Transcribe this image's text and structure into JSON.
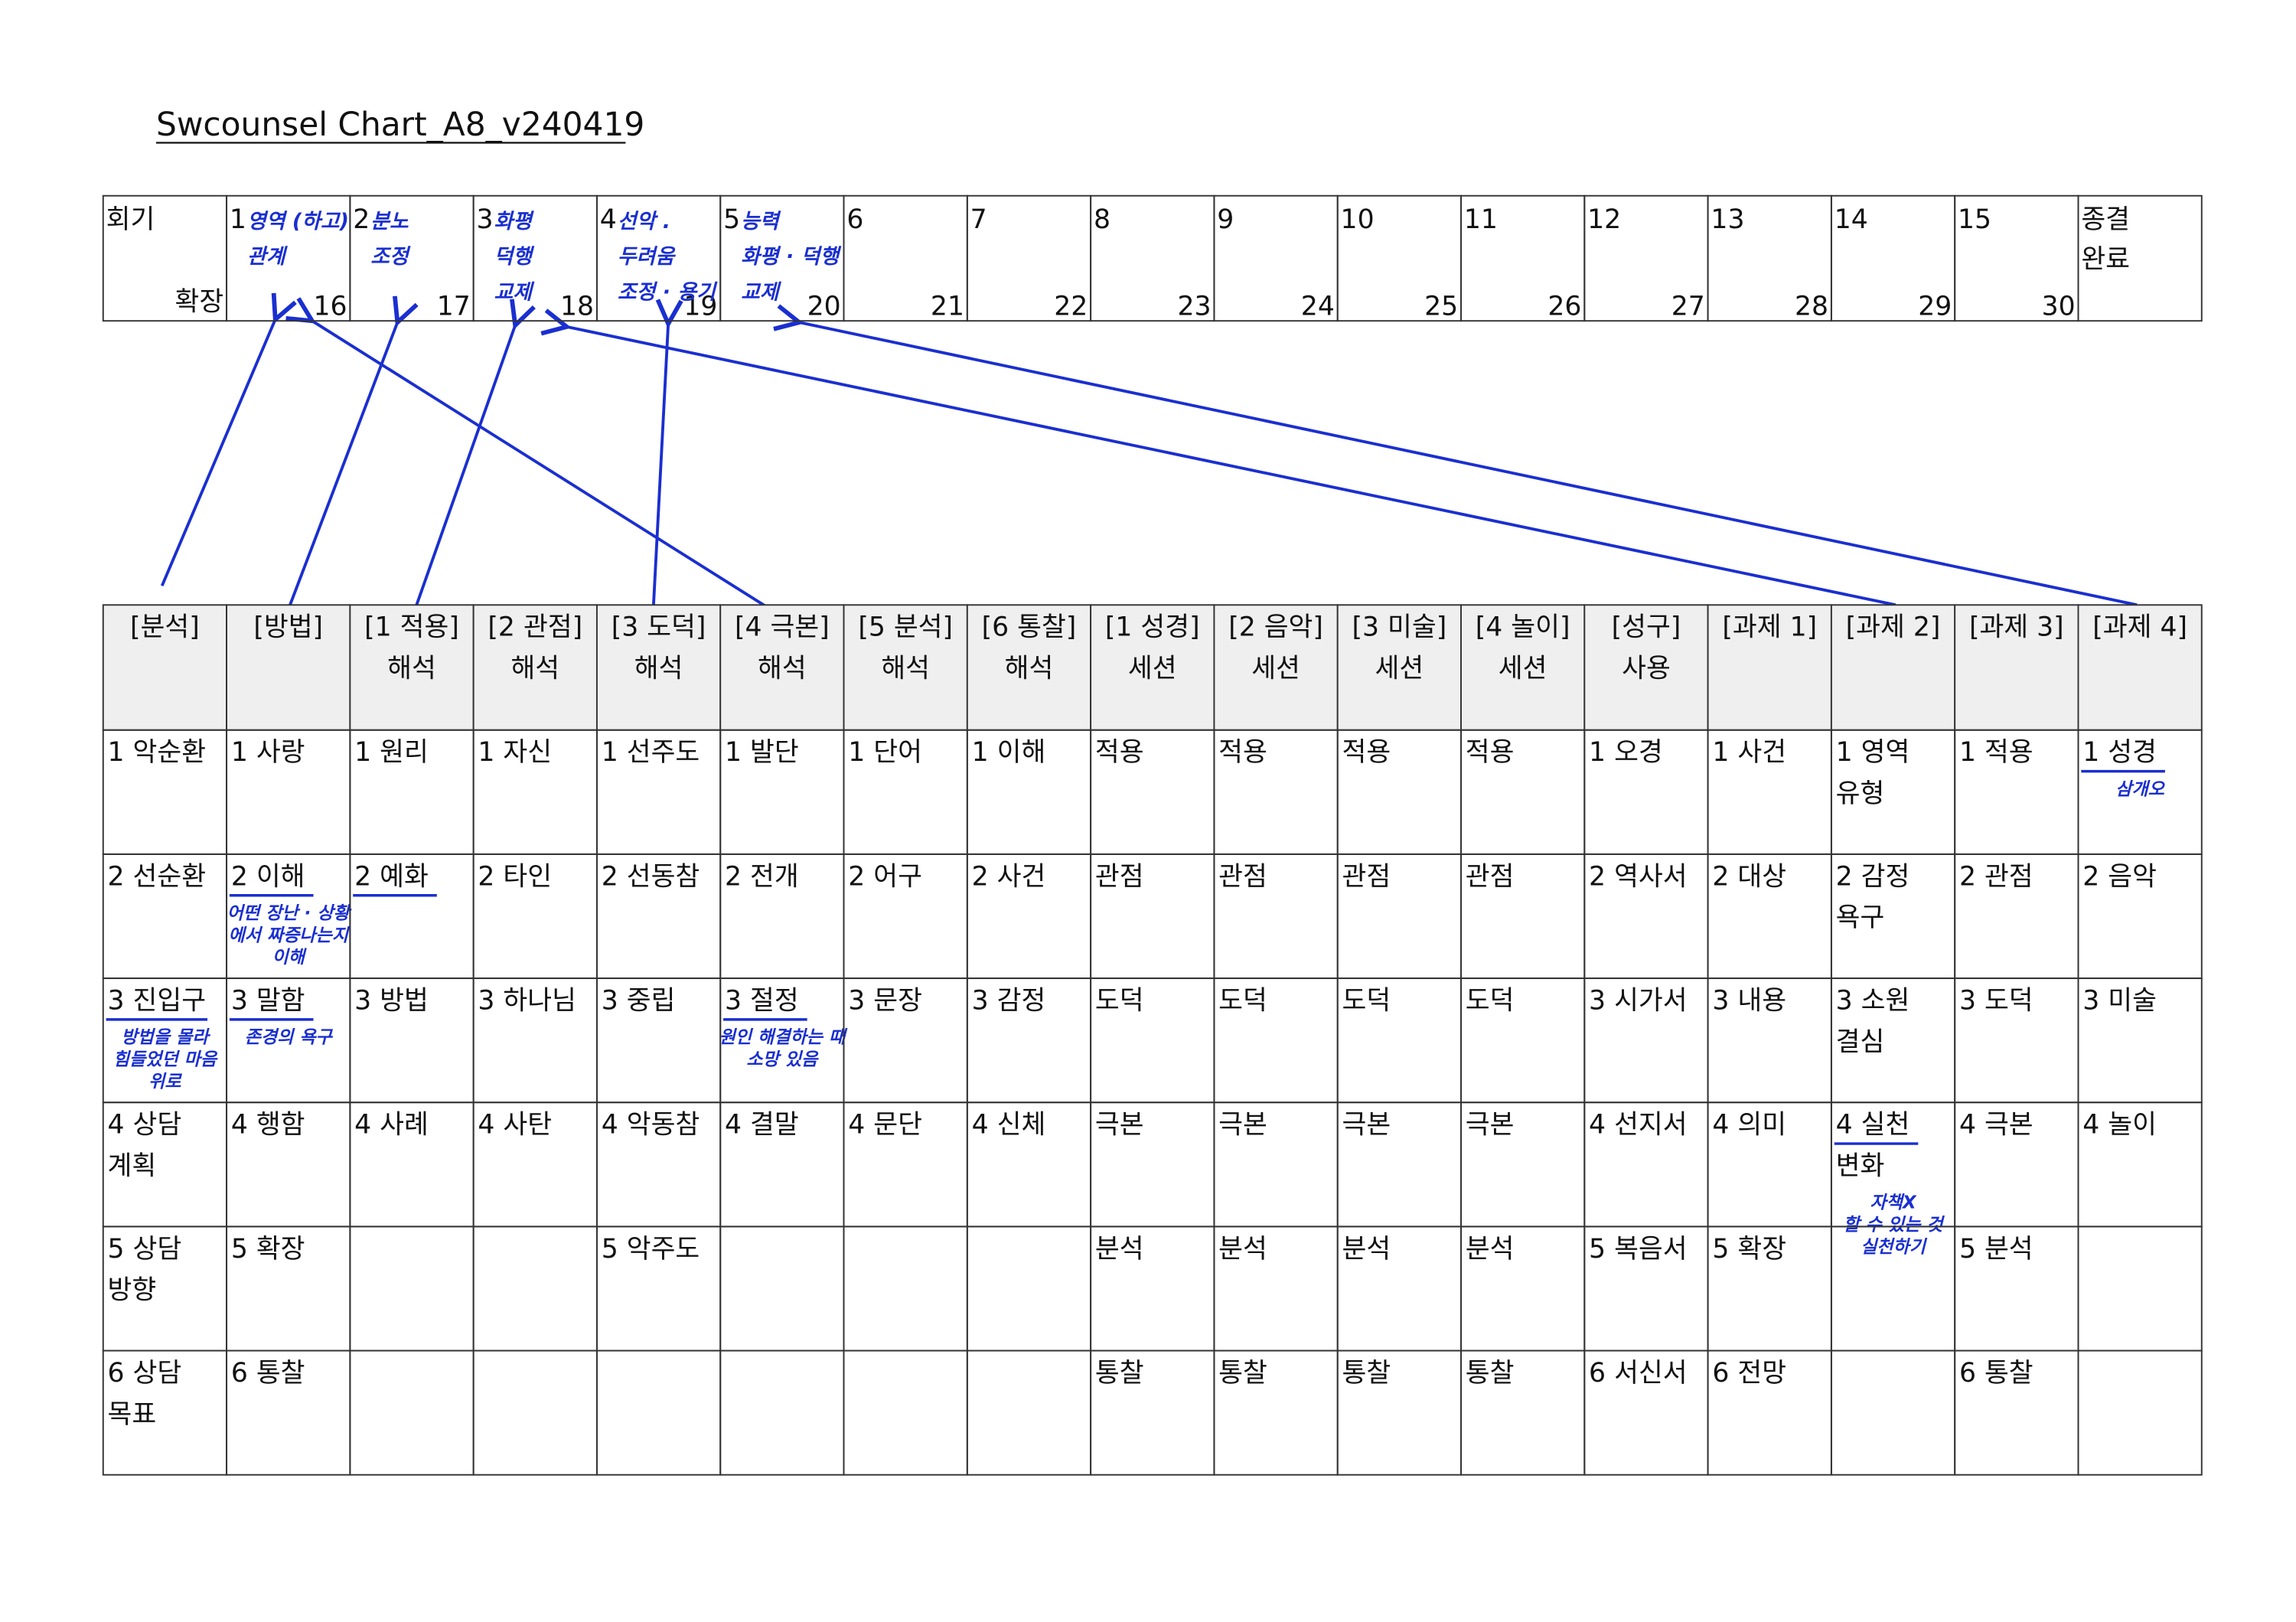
{
  "title": "Swcounsel Chart_A8_v240419",
  "sessions": {
    "label": "회기",
    "extension_label": "확장",
    "cells": [
      {
        "n": 1,
        "ext": 16,
        "note": [
          "영역 (하고)",
          "관계"
        ]
      },
      {
        "n": 2,
        "ext": 17,
        "note": [
          "분노",
          "조정"
        ]
      },
      {
        "n": 3,
        "ext": 18,
        "note": [
          "화평",
          "덕행",
          "교제"
        ]
      },
      {
        "n": 4,
        "ext": 19,
        "note": [
          "선악 .",
          "두려움",
          "조정 · 용기"
        ]
      },
      {
        "n": 5,
        "ext": 20,
        "note": [
          "능력",
          "화평 · 덕행",
          "교제"
        ]
      },
      {
        "n": 6,
        "ext": 21
      },
      {
        "n": 7,
        "ext": 22
      },
      {
        "n": 8,
        "ext": 23
      },
      {
        "n": 9,
        "ext": 24
      },
      {
        "n": 10,
        "ext": 25
      },
      {
        "n": 11,
        "ext": 26
      },
      {
        "n": 12,
        "ext": 27
      },
      {
        "n": 13,
        "ext": 28
      },
      {
        "n": 14,
        "ext": 29
      },
      {
        "n": 15,
        "ext": 30
      }
    ],
    "closing": [
      "종결",
      "완료"
    ]
  },
  "table": {
    "header": [
      [
        "[분석]"
      ],
      [
        "[방법]"
      ],
      [
        "[1 적용]",
        "해석"
      ],
      [
        "[2 관점]",
        "해석"
      ],
      [
        "[3 도덕]",
        "해석"
      ],
      [
        "[4 극본]",
        "해석"
      ],
      [
        "[5 분석]",
        "해석"
      ],
      [
        "[6 통찰]",
        "해석"
      ],
      [
        "[1 성경]",
        "세션"
      ],
      [
        "[2 음악]",
        "세션"
      ],
      [
        "[3 미술]",
        "세션"
      ],
      [
        "[4 놀이]",
        "세션"
      ],
      [
        "[성구]",
        "사용"
      ],
      [
        "[과제 1]"
      ],
      [
        "[과제 2]"
      ],
      [
        "[과제 3]"
      ],
      [
        "[과제 4]"
      ]
    ],
    "rows": [
      [
        [
          "1 악순환"
        ],
        [
          "1 사랑"
        ],
        [
          "1 원리"
        ],
        [
          "1 자신"
        ],
        [
          "1 선주도"
        ],
        [
          "1 발단"
        ],
        [
          "1 단어"
        ],
        [
          "1 이해"
        ],
        [
          "적용"
        ],
        [
          "적용"
        ],
        [
          "적용"
        ],
        [
          "적용"
        ],
        [
          "1 오경"
        ],
        [
          "1 사건"
        ],
        [
          "1 영역",
          "유형"
        ],
        [
          "1 적용"
        ],
        {
          "text": [
            "1 성경"
          ],
          "underline": true,
          "note": [
            "삼개오"
          ]
        }
      ],
      [
        [
          "2 선순환"
        ],
        {
          "text": [
            "2 이해"
          ],
          "underline": true,
          "note": [
            "어떤 장난 · 상황",
            "에서 짜증나는지",
            "이해"
          ]
        },
        {
          "text": [
            "2 예화"
          ],
          "underline": true
        },
        [
          "2 타인"
        ],
        [
          "2 선동참"
        ],
        [
          "2 전개"
        ],
        [
          "2 어구"
        ],
        [
          "2 사건"
        ],
        [
          "관점"
        ],
        [
          "관점"
        ],
        [
          "관점"
        ],
        [
          "관점"
        ],
        [
          "2 역사서"
        ],
        [
          "2 대상"
        ],
        [
          "2 감정",
          "욕구"
        ],
        [
          "2 관점"
        ],
        [
          "2 음악"
        ]
      ],
      [
        {
          "text": [
            "3 진입구"
          ],
          "underline": true,
          "note": [
            "방법을 몰라",
            "힘들었던 마음",
            "위로"
          ]
        },
        {
          "text": [
            "3 말함"
          ],
          "underline": true,
          "note": [
            "존경의 욕구"
          ]
        },
        [
          "3 방법"
        ],
        [
          "3 하나님"
        ],
        [
          "3 중립"
        ],
        {
          "text": [
            "3 절정"
          ],
          "underline": true,
          "note": [
            "원인 해결하는 때",
            "소망 있음"
          ]
        },
        [
          "3 문장"
        ],
        [
          "3 감정"
        ],
        [
          "도덕"
        ],
        [
          "도덕"
        ],
        [
          "도덕"
        ],
        [
          "도덕"
        ],
        [
          "3 시가서"
        ],
        [
          "3 내용"
        ],
        [
          "3 소원",
          "결심"
        ],
        [
          "3 도덕"
        ],
        [
          "3 미술"
        ]
      ],
      [
        [
          "4 상담",
          "계획"
        ],
        [
          "4 행함"
        ],
        [
          "4 사례"
        ],
        [
          "4 사탄"
        ],
        [
          "4 악동참"
        ],
        [
          "4 결말"
        ],
        [
          "4 문단"
        ],
        [
          "4 신체"
        ],
        [
          "극본"
        ],
        [
          "극본"
        ],
        [
          "극본"
        ],
        [
          "극본"
        ],
        [
          "4 선지서"
        ],
        [
          "4 의미"
        ],
        {
          "text": [
            "4 실천",
            "변화"
          ],
          "underline": true,
          "note": [
            "자책X",
            "할 수 있는 것",
            "실천하기"
          ]
        },
        [
          "4 극본"
        ],
        [
          "4 놀이"
        ]
      ],
      [
        [
          "5 상담",
          "방향"
        ],
        [
          "5 확장"
        ],
        [],
        [],
        [
          "5 악주도"
        ],
        [],
        [],
        [],
        [
          "분석"
        ],
        [
          "분석"
        ],
        [
          "분석"
        ],
        [
          "분석"
        ],
        [
          "5 복음서"
        ],
        [
          "5 확장"
        ],
        [],
        [
          "5 분석"
        ],
        []
      ],
      [
        [
          "6 상담",
          "목표"
        ],
        [
          "6 통찰"
        ],
        [],
        [],
        [],
        [],
        [],
        [],
        [
          "통찰"
        ],
        [
          "통찰"
        ],
        [
          "통찰"
        ],
        [
          "통찰"
        ],
        [
          "6 서신서"
        ],
        [
          "6 전망"
        ],
        [],
        [
          "6 통찰"
        ],
        []
      ]
    ]
  }
}
